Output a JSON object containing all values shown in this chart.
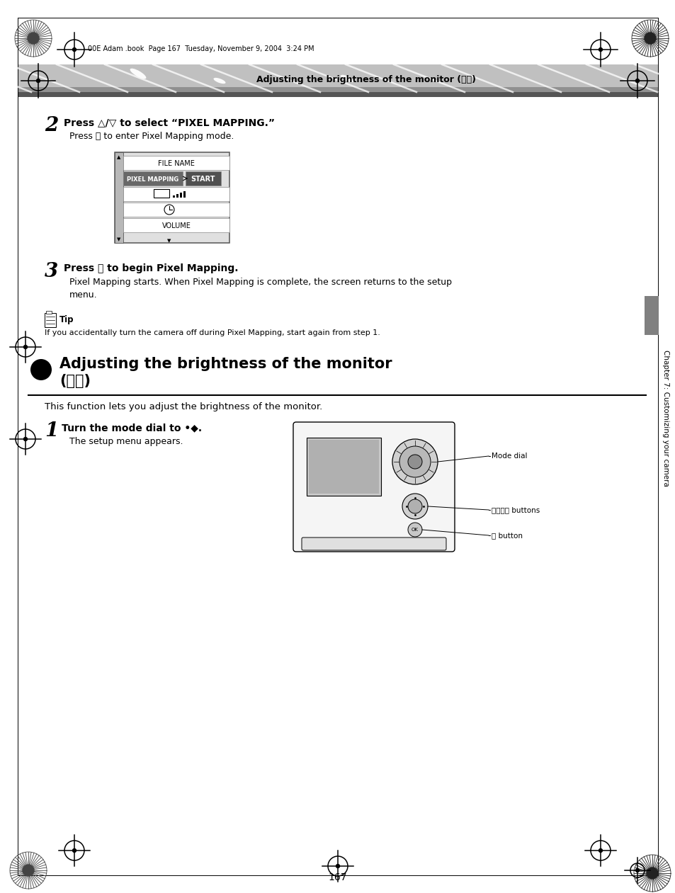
{
  "page_bg": "#ffffff",
  "top_meta": "00E Adam .book  Page 167  Tuesday, November 9, 2004  3:24 PM",
  "header_text": "Adjusting the brightness of the monitor (⏮⏹)",
  "step2_num": "2",
  "step2_heading": "Press △/▽ to select “PIXEL MAPPING.”",
  "step2_sub": "Press Ⓞ to enter Pixel Mapping mode.",
  "step3_num": "3",
  "step3_heading": "Press Ⓞ to begin Pixel Mapping.",
  "step3_sub1": "Pixel Mapping starts. When Pixel Mapping is complete, the screen returns to the setup",
  "step3_sub2": "menu.",
  "tip_label": "Tip",
  "tip_text": "If you accidentally turn the camera off during Pixel Mapping, start again from step 1.",
  "section_title1": "Adjusting the brightness of the monitor",
  "section_title2": "(⏮⏹)",
  "section_desc": "This function lets you adjust the brightness of the monitor.",
  "step1_num": "1",
  "step1_heading": "Turn the mode dial to •◆.",
  "step1_sub": "The setup menu appears.",
  "mode_dial_label": "Mode dial",
  "buttons_label": "ⓐⓑⓒⓓ buttons",
  "ok_label": "Ⓞ button",
  "chapter_label": "Chapter 7: Customizing your camera",
  "page_num": "167",
  "header_bg1": "#c0c0c0",
  "header_bg2": "#888888",
  "header_stripe": "#505050"
}
